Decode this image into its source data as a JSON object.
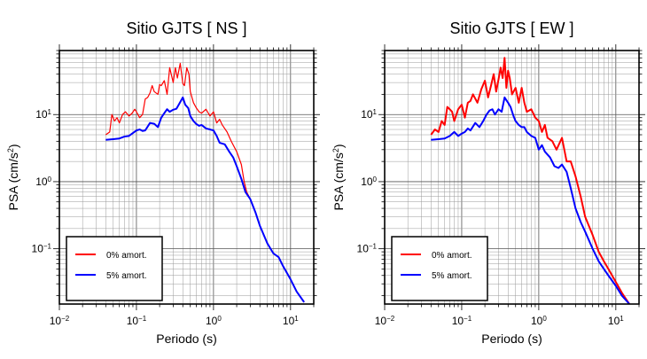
{
  "chart_data": [
    {
      "type": "line",
      "title": "Sitio GJTS [ NS ]",
      "xlabel": "Periodo (s)",
      "ylabel_base": "PSA (cm/s",
      "ylabel_exp": "2",
      "ylabel_close": ")",
      "x_scale": "log",
      "y_scale": "log",
      "xlim": [
        0.01,
        20
      ],
      "ylim": [
        0.015,
        90
      ],
      "grid": true,
      "legend_position": "bottom-left",
      "x_ticks": [
        {
          "value": 0.01,
          "base": "10",
          "exp": "−2"
        },
        {
          "value": 0.1,
          "base": "10",
          "exp": "−1"
        },
        {
          "value": 1,
          "base": "10",
          "exp": "0"
        },
        {
          "value": 10,
          "base": "10",
          "exp": "1"
        }
      ],
      "y_ticks": [
        {
          "value": 0.1,
          "base": "10",
          "exp": "−1"
        },
        {
          "value": 1,
          "base": "10",
          "exp": "0"
        },
        {
          "value": 10,
          "base": "10",
          "exp": "1"
        }
      ],
      "series": [
        {
          "name": "0% amort.",
          "color": "#ff0000",
          "stroke": 1.2,
          "x": [
            0.04,
            0.045,
            0.048,
            0.052,
            0.056,
            0.06,
            0.066,
            0.072,
            0.08,
            0.088,
            0.095,
            0.1,
            0.11,
            0.12,
            0.13,
            0.14,
            0.15,
            0.16,
            0.17,
            0.19,
            0.2,
            0.21,
            0.23,
            0.25,
            0.27,
            0.3,
            0.32,
            0.34,
            0.37,
            0.4,
            0.42,
            0.45,
            0.48,
            0.5,
            0.55,
            0.6,
            0.65,
            0.7,
            0.8,
            0.9,
            1.0,
            1.1,
            1.2,
            1.3,
            1.5,
            1.7,
            2.0,
            2.3,
            2.5,
            2.7,
            3.0,
            3.5,
            4.0,
            5.0,
            6.0,
            7.0,
            8.0,
            10.0,
            12.0,
            15.0
          ],
          "y": [
            5,
            5.5,
            10,
            8,
            9,
            7.5,
            10,
            11,
            9.5,
            10.5,
            12,
            11,
            9,
            10,
            17,
            18,
            21,
            27,
            22,
            20,
            28,
            27,
            32,
            20,
            50,
            30,
            50,
            35,
            58,
            29,
            27,
            50,
            40,
            22,
            15,
            12.5,
            11,
            10.5,
            12,
            9.5,
            11,
            7.5,
            8.5,
            7,
            5.5,
            4.0,
            2.8,
            1.8,
            1.0,
            0.7,
            0.55,
            0.35,
            0.22,
            0.12,
            0.085,
            0.075,
            0.055,
            0.035,
            0.023,
            0.016
          ]
        },
        {
          "name": "5% amort.",
          "color": "#0000ff",
          "stroke": 2,
          "x": [
            0.04,
            0.05,
            0.06,
            0.07,
            0.08,
            0.09,
            0.1,
            0.11,
            0.12,
            0.13,
            0.15,
            0.17,
            0.19,
            0.21,
            0.23,
            0.25,
            0.27,
            0.3,
            0.33,
            0.36,
            0.4,
            0.43,
            0.47,
            0.5,
            0.55,
            0.6,
            0.65,
            0.7,
            0.8,
            0.9,
            1.0,
            1.1,
            1.2,
            1.4,
            1.6,
            1.8,
            2.0,
            2.3,
            2.6,
            3.0,
            3.5,
            4.0,
            5.0,
            6.0,
            7.0,
            8.0,
            10.0,
            12.0,
            15.0
          ],
          "y": [
            4.2,
            4.3,
            4.4,
            4.7,
            4.8,
            5.3,
            5.8,
            6.0,
            5.7,
            5.8,
            7.5,
            7.3,
            6.5,
            9.0,
            10.5,
            12.0,
            11.0,
            11.8,
            12.2,
            14.5,
            18.0,
            14.0,
            12.5,
            9.5,
            8.0,
            7.2,
            6.8,
            7.0,
            6.2,
            6.0,
            5.8,
            4.8,
            3.8,
            3.6,
            2.8,
            2.3,
            1.7,
            1.1,
            0.7,
            0.55,
            0.35,
            0.22,
            0.12,
            0.085,
            0.075,
            0.055,
            0.035,
            0.023,
            0.016
          ]
        }
      ]
    },
    {
      "type": "line",
      "title": "Sitio GJTS [ EW ]",
      "xlabel": "Periodo (s)",
      "ylabel_base": "PSA (cm/s",
      "ylabel_exp": "2",
      "ylabel_close": ")",
      "x_scale": "log",
      "y_scale": "log",
      "xlim": [
        0.01,
        20
      ],
      "ylim": [
        0.015,
        90
      ],
      "grid": true,
      "legend_position": "bottom-left",
      "x_ticks": [
        {
          "value": 0.01,
          "base": "10",
          "exp": "−2"
        },
        {
          "value": 0.1,
          "base": "10",
          "exp": "−1"
        },
        {
          "value": 1,
          "base": "10",
          "exp": "0"
        },
        {
          "value": 10,
          "base": "10",
          "exp": "1"
        }
      ],
      "y_ticks": [
        {
          "value": 0.1,
          "base": "10",
          "exp": "−1"
        },
        {
          "value": 1,
          "base": "10",
          "exp": "0"
        },
        {
          "value": 10,
          "base": "10",
          "exp": "1"
        }
      ],
      "series": [
        {
          "name": "0% amort.",
          "color": "#ff0000",
          "stroke": 2,
          "x": [
            0.04,
            0.045,
            0.05,
            0.055,
            0.06,
            0.065,
            0.07,
            0.075,
            0.08,
            0.09,
            0.1,
            0.11,
            0.12,
            0.13,
            0.14,
            0.16,
            0.18,
            0.2,
            0.22,
            0.24,
            0.26,
            0.28,
            0.3,
            0.32,
            0.34,
            0.36,
            0.38,
            0.4,
            0.42,
            0.45,
            0.5,
            0.55,
            0.6,
            0.65,
            0.7,
            0.8,
            0.9,
            1.0,
            1.1,
            1.2,
            1.3,
            1.5,
            1.7,
            2.0,
            2.3,
            2.6,
            3.0,
            3.5,
            4.0,
            5.0,
            6.0,
            7.0,
            8.0,
            10.0,
            12.0,
            15.0
          ],
          "y": [
            5,
            6,
            5.5,
            8,
            7,
            13,
            12,
            11,
            8,
            12,
            14,
            9,
            15,
            16,
            20,
            15,
            24,
            32,
            18,
            27,
            40,
            22,
            33,
            50,
            35,
            70,
            25,
            45,
            35,
            20,
            25,
            15,
            25,
            15,
            11,
            12,
            9,
            8,
            5.5,
            7,
            4.5,
            4,
            3,
            4.5,
            2,
            2,
            1.2,
            0.6,
            0.3,
            0.16,
            0.09,
            0.065,
            0.05,
            0.032,
            0.022,
            0.015
          ]
        },
        {
          "name": "5% amort.",
          "color": "#0000ff",
          "stroke": 2,
          "x": [
            0.04,
            0.05,
            0.06,
            0.07,
            0.08,
            0.09,
            0.1,
            0.11,
            0.12,
            0.13,
            0.15,
            0.17,
            0.19,
            0.21,
            0.23,
            0.25,
            0.27,
            0.3,
            0.33,
            0.36,
            0.4,
            0.43,
            0.47,
            0.5,
            0.55,
            0.6,
            0.65,
            0.7,
            0.8,
            0.9,
            1.0,
            1.1,
            1.2,
            1.4,
            1.6,
            1.8,
            2.0,
            2.3,
            2.6,
            3.0,
            3.5,
            4.0,
            5.0,
            6.0,
            7.0,
            8.0,
            10.0,
            12.0,
            15.0
          ],
          "y": [
            4.2,
            4.3,
            4.4,
            4.8,
            5.5,
            4.8,
            5.2,
            5.5,
            6.2,
            5.8,
            7.5,
            6.5,
            8.0,
            10.0,
            11.5,
            12.0,
            10.0,
            12.0,
            11.0,
            18.0,
            15.0,
            13.0,
            9.5,
            8.0,
            7.0,
            6.5,
            6.5,
            5.5,
            4.8,
            4.5,
            3.0,
            3.5,
            2.8,
            2.3,
            1.7,
            1.6,
            1.8,
            1.4,
            0.8,
            0.4,
            0.25,
            0.18,
            0.1,
            0.065,
            0.05,
            0.04,
            0.028,
            0.02,
            0.015
          ]
        }
      ]
    }
  ]
}
